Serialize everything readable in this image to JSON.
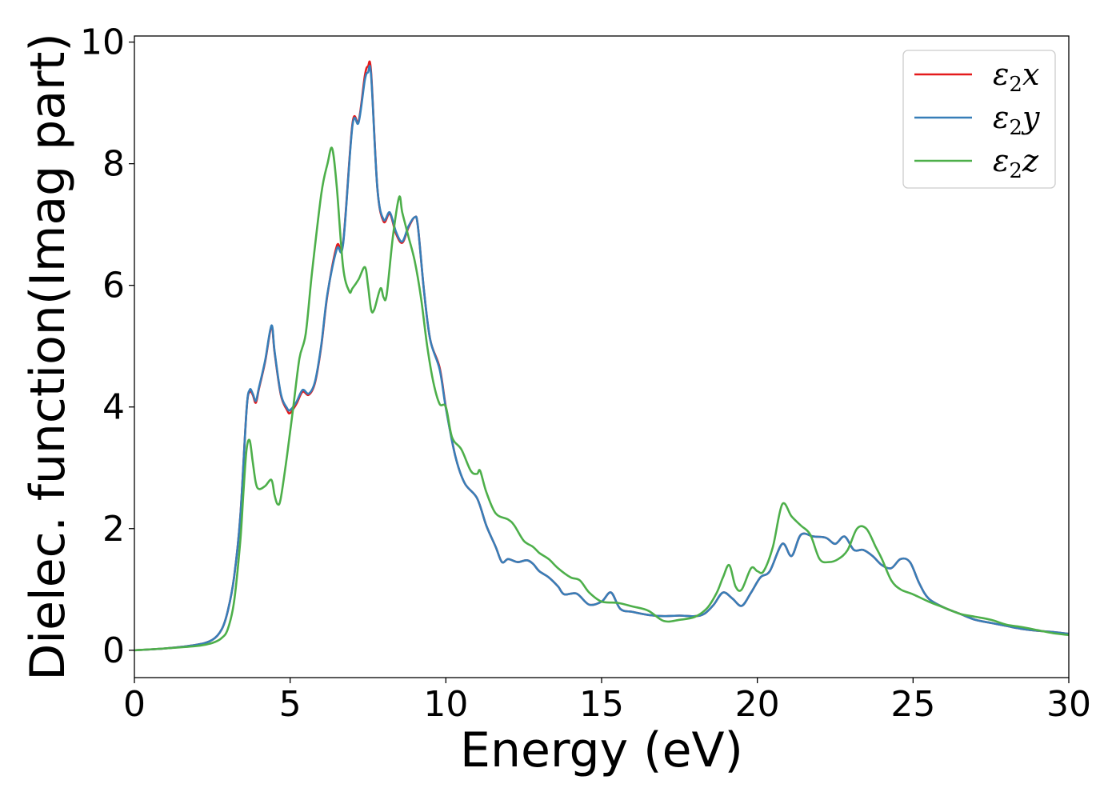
{
  "chart_data": {
    "type": "line",
    "title": "",
    "xlabel": "Energy (eV)",
    "ylabel": "Dielec. function(Imag part)",
    "xlim": [
      0,
      30
    ],
    "ylim": [
      -0.45,
      10.1
    ],
    "xticks": [
      0,
      5,
      10,
      15,
      20,
      25,
      30
    ],
    "xtick_labels": [
      "0",
      "5",
      "10",
      "15",
      "20",
      "25",
      "30"
    ],
    "yticks": [
      0,
      2,
      4,
      6,
      8,
      10
    ],
    "ytick_labels": [
      "0",
      "2",
      "4",
      "6",
      "8",
      "10"
    ],
    "grid": false,
    "legend_position": "top-right",
    "series": [
      {
        "name": "ε₂x",
        "legend_base": "ε",
        "legend_sub": "2",
        "legend_var": "x",
        "color": "#e41a1c",
        "x": [
          0,
          1,
          2,
          2.5,
          2.8,
          3.0,
          3.2,
          3.4,
          3.6,
          3.7,
          3.8,
          3.9,
          4.0,
          4.2,
          4.4,
          4.5,
          4.7,
          4.9,
          5.0,
          5.2,
          5.4,
          5.6,
          5.8,
          6.0,
          6.2,
          6.5,
          6.7,
          7.0,
          7.2,
          7.4,
          7.5,
          7.6,
          7.8,
          8.0,
          8.2,
          8.4,
          8.6,
          8.8,
          9.0,
          9.1,
          9.3,
          9.5,
          9.8,
          10.0,
          10.3,
          10.6,
          11.0,
          11.3,
          11.6,
          11.8,
          12.0,
          12.3,
          12.6,
          12.8,
          13.0,
          13.3,
          13.6,
          13.8,
          14.2,
          14.6,
          15.0,
          15.3,
          15.6,
          16.0,
          16.5,
          17.0,
          17.5,
          18.0,
          18.3,
          18.6,
          18.9,
          19.2,
          19.5,
          19.8,
          20.1,
          20.4,
          20.8,
          21.1,
          21.4,
          21.8,
          22.2,
          22.5,
          22.8,
          23.1,
          23.4,
          23.7,
          24.0,
          24.3,
          24.6,
          24.9,
          25.2,
          25.5,
          26.0,
          26.5,
          27.0,
          27.5,
          28.0,
          28.5,
          29.0,
          29.5,
          30
        ],
        "y": [
          0,
          0.03,
          0.09,
          0.17,
          0.34,
          0.65,
          1.2,
          2.2,
          3.95,
          4.25,
          4.2,
          4.07,
          4.3,
          4.75,
          5.32,
          4.9,
          4.2,
          3.95,
          3.9,
          4.05,
          4.25,
          4.2,
          4.4,
          5.0,
          5.85,
          6.65,
          6.7,
          8.65,
          8.7,
          9.45,
          9.6,
          9.5,
          7.6,
          7.05,
          7.18,
          6.85,
          6.7,
          6.95,
          7.12,
          6.98,
          5.9,
          5.1,
          4.65,
          4.0,
          3.2,
          2.75,
          2.5,
          2.05,
          1.7,
          1.45,
          1.5,
          1.45,
          1.48,
          1.42,
          1.3,
          1.2,
          1.05,
          0.92,
          0.93,
          0.75,
          0.8,
          0.95,
          0.68,
          0.63,
          0.58,
          0.56,
          0.57,
          0.56,
          0.6,
          0.75,
          0.95,
          0.85,
          0.73,
          0.95,
          1.2,
          1.3,
          1.75,
          1.55,
          1.9,
          1.87,
          1.85,
          1.75,
          1.87,
          1.65,
          1.65,
          1.55,
          1.4,
          1.35,
          1.5,
          1.45,
          1.1,
          0.85,
          0.7,
          0.6,
          0.5,
          0.45,
          0.4,
          0.35,
          0.32,
          0.3,
          0.27
        ]
      },
      {
        "name": "ε₂y",
        "legend_base": "ε",
        "legend_sub": "2",
        "legend_var": "y",
        "color": "#377eb8",
        "x": [
          0,
          1,
          2,
          2.5,
          2.8,
          3.0,
          3.2,
          3.4,
          3.6,
          3.7,
          3.8,
          3.9,
          4.0,
          4.2,
          4.4,
          4.5,
          4.7,
          4.9,
          5.0,
          5.2,
          5.4,
          5.6,
          5.8,
          6.0,
          6.2,
          6.5,
          6.7,
          7.0,
          7.2,
          7.4,
          7.5,
          7.6,
          7.8,
          8.0,
          8.2,
          8.4,
          8.6,
          8.8,
          9.0,
          9.1,
          9.3,
          9.5,
          9.8,
          10.0,
          10.3,
          10.6,
          11.0,
          11.3,
          11.6,
          11.8,
          12.0,
          12.3,
          12.6,
          12.8,
          13.0,
          13.3,
          13.6,
          13.8,
          14.2,
          14.6,
          15.0,
          15.3,
          15.6,
          16.0,
          16.5,
          17.0,
          17.5,
          18.0,
          18.3,
          18.6,
          18.9,
          19.2,
          19.5,
          19.8,
          20.1,
          20.4,
          20.8,
          21.1,
          21.4,
          21.8,
          22.2,
          22.5,
          22.8,
          23.1,
          23.4,
          23.7,
          24.0,
          24.3,
          24.6,
          24.9,
          25.2,
          25.5,
          26.0,
          26.5,
          27.0,
          27.5,
          28.0,
          28.5,
          29.0,
          29.5,
          30
        ],
        "y": [
          0,
          0.03,
          0.09,
          0.17,
          0.34,
          0.65,
          1.2,
          2.2,
          3.95,
          4.28,
          4.22,
          4.1,
          4.32,
          4.77,
          5.34,
          4.92,
          4.22,
          3.98,
          3.95,
          4.08,
          4.28,
          4.22,
          4.42,
          5.02,
          5.87,
          6.6,
          6.68,
          8.62,
          8.68,
          9.38,
          9.5,
          9.45,
          7.6,
          7.08,
          7.2,
          6.88,
          6.72,
          6.97,
          7.12,
          6.98,
          5.9,
          5.1,
          4.62,
          3.98,
          3.2,
          2.75,
          2.5,
          2.05,
          1.7,
          1.45,
          1.5,
          1.45,
          1.48,
          1.42,
          1.3,
          1.2,
          1.05,
          0.92,
          0.93,
          0.75,
          0.8,
          0.95,
          0.68,
          0.63,
          0.58,
          0.56,
          0.57,
          0.56,
          0.6,
          0.75,
          0.95,
          0.85,
          0.73,
          0.95,
          1.2,
          1.3,
          1.75,
          1.55,
          1.9,
          1.87,
          1.85,
          1.75,
          1.87,
          1.65,
          1.65,
          1.55,
          1.4,
          1.35,
          1.5,
          1.45,
          1.1,
          0.85,
          0.7,
          0.6,
          0.5,
          0.45,
          0.4,
          0.35,
          0.32,
          0.3,
          0.27
        ]
      },
      {
        "name": "ε₂z",
        "legend_base": "ε",
        "legend_sub": "2",
        "legend_var": "z",
        "color": "#4daf4a",
        "x": [
          0,
          1,
          2,
          2.5,
          2.8,
          3.0,
          3.2,
          3.4,
          3.5,
          3.6,
          3.7,
          3.8,
          3.9,
          4.0,
          4.2,
          4.4,
          4.5,
          4.6,
          4.7,
          4.9,
          5.1,
          5.3,
          5.5,
          5.7,
          6.0,
          6.2,
          6.35,
          6.5,
          6.7,
          6.9,
          7.0,
          7.2,
          7.4,
          7.5,
          7.6,
          7.7,
          7.9,
          8.0,
          8.1,
          8.3,
          8.5,
          8.6,
          8.8,
          9.0,
          9.2,
          9.4,
          9.6,
          9.8,
          10.0,
          10.2,
          10.5,
          10.8,
          11.0,
          11.1,
          11.3,
          11.6,
          12.0,
          12.2,
          12.5,
          12.8,
          13.0,
          13.3,
          13.6,
          14.0,
          14.3,
          14.6,
          15.0,
          15.5,
          16.0,
          16.5,
          17.0,
          17.5,
          18.0,
          18.4,
          18.7,
          18.9,
          19.1,
          19.3,
          19.5,
          19.8,
          20.0,
          20.2,
          20.5,
          20.8,
          21.1,
          21.4,
          21.7,
          22.0,
          22.3,
          22.6,
          22.9,
          23.2,
          23.5,
          23.8,
          24.0,
          24.3,
          24.6,
          25.0,
          25.5,
          26.0,
          26.5,
          27.0,
          27.5,
          28.0,
          28.5,
          29.0,
          29.5,
          30
        ],
        "y": [
          0,
          0.03,
          0.07,
          0.12,
          0.2,
          0.35,
          0.8,
          1.8,
          2.6,
          3.3,
          3.45,
          3.1,
          2.75,
          2.65,
          2.7,
          2.8,
          2.55,
          2.4,
          2.5,
          3.2,
          4.0,
          4.8,
          5.2,
          6.2,
          7.5,
          8.0,
          8.25,
          7.6,
          6.3,
          5.9,
          5.95,
          6.1,
          6.3,
          6.0,
          5.6,
          5.6,
          5.95,
          5.8,
          5.85,
          6.8,
          7.45,
          7.2,
          6.8,
          6.4,
          5.8,
          5.0,
          4.4,
          4.05,
          4.0,
          3.5,
          3.3,
          2.95,
          2.9,
          2.95,
          2.6,
          2.25,
          2.15,
          2.05,
          1.8,
          1.7,
          1.6,
          1.5,
          1.35,
          1.2,
          1.15,
          0.95,
          0.8,
          0.78,
          0.72,
          0.65,
          0.48,
          0.5,
          0.55,
          0.7,
          0.95,
          1.2,
          1.4,
          1.05,
          1.0,
          1.35,
          1.3,
          1.3,
          1.7,
          2.4,
          2.2,
          2.05,
          1.9,
          1.5,
          1.45,
          1.5,
          1.65,
          2.0,
          2.0,
          1.7,
          1.5,
          1.15,
          1.0,
          0.92,
          0.8,
          0.7,
          0.6,
          0.55,
          0.5,
          0.42,
          0.38,
          0.33,
          0.28,
          0.25
        ]
      }
    ]
  }
}
